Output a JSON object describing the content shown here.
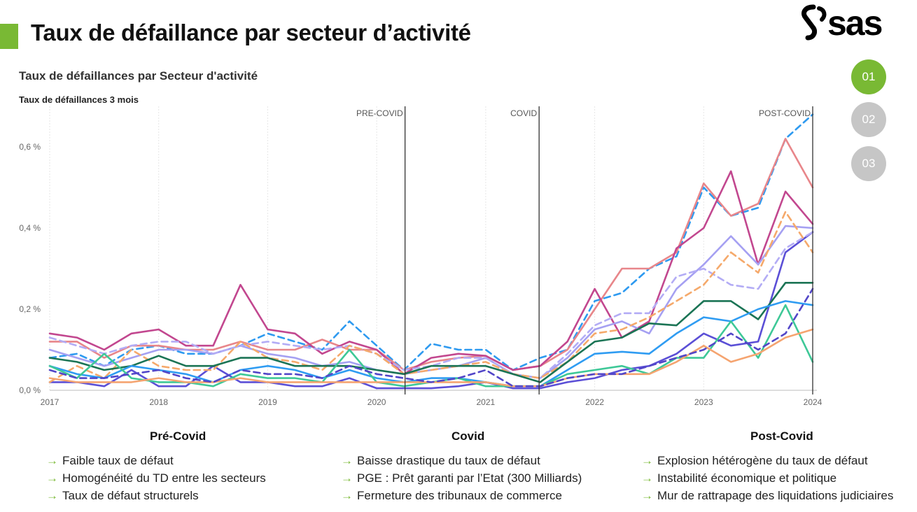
{
  "header": {
    "title": "Taux de défaillance par secteur d’activité",
    "logo_text": "sas"
  },
  "steps": [
    {
      "label": "01",
      "active": true
    },
    {
      "label": "02",
      "active": false
    },
    {
      "label": "03",
      "active": false
    }
  ],
  "chart_data": {
    "type": "line",
    "title": "Taux de défaillances par Secteur d'activité",
    "ylabel": "Taux de défaillances 3 mois",
    "xlim": [
      2017,
      2024
    ],
    "ylim": [
      0,
      0.7
    ],
    "yticks": [
      0,
      0.2,
      0.4,
      0.6
    ],
    "ytick_labels": [
      "0,0 %",
      "0,2 %",
      "0,4 %",
      "0,6 %"
    ],
    "xticks": [
      "2017",
      "2018",
      "2019",
      "2020",
      "2021",
      "2022",
      "2023",
      "2024"
    ],
    "grid": "vertical",
    "x": [
      2017,
      2017.25,
      2017.5,
      2017.75,
      2018,
      2018.25,
      2018.5,
      2018.75,
      2019,
      2019.25,
      2019.5,
      2019.75,
      2020,
      2020.25,
      2020.5,
      2020.75,
      2021,
      2021.25,
      2021.5,
      2021.75,
      2022,
      2022.25,
      2022.5,
      2022.75,
      2023,
      2023.25,
      2023.5,
      2023.75,
      2024
    ],
    "markers": [
      {
        "label": "PRE-COVID",
        "x": 2020.26
      },
      {
        "label": "COVID",
        "x": 2021.49
      },
      {
        "label": "POST-COVID",
        "x": 2024
      }
    ],
    "series": [
      {
        "color": "#2e9af0",
        "dash": true,
        "values": [
          0.08,
          0.09,
          0.06,
          0.1,
          0.11,
          0.09,
          0.09,
          0.11,
          0.14,
          0.12,
          0.1,
          0.17,
          0.11,
          0.05,
          0.115,
          0.1,
          0.1,
          0.05,
          0.08,
          0.1,
          0.22,
          0.24,
          0.3,
          0.33,
          0.5,
          0.43,
          0.45,
          0.62,
          0.68
        ]
      },
      {
        "color": "#e8868a",
        "dash": false,
        "values": [
          0.12,
          0.12,
          0.08,
          0.11,
          0.11,
          0.1,
          0.1,
          0.12,
          0.1,
          0.1,
          0.125,
          0.1,
          0.1,
          0.05,
          0.07,
          0.08,
          0.085,
          0.05,
          0.06,
          0.1,
          0.2,
          0.3,
          0.3,
          0.34,
          0.51,
          0.43,
          0.46,
          0.62,
          0.5
        ]
      },
      {
        "color": "#c2478f",
        "dash": false,
        "values": [
          0.14,
          0.13,
          0.1,
          0.14,
          0.15,
          0.11,
          0.11,
          0.26,
          0.15,
          0.14,
          0.09,
          0.12,
          0.1,
          0.04,
          0.08,
          0.09,
          0.085,
          0.05,
          0.06,
          0.12,
          0.25,
          0.13,
          0.17,
          0.35,
          0.4,
          0.54,
          0.31,
          0.49,
          0.41
        ]
      },
      {
        "color": "#5b4fd6",
        "dash": false,
        "values": [
          0.02,
          0.02,
          0.01,
          0.05,
          0.01,
          0.01,
          0.06,
          0.02,
          0.02,
          0.01,
          0.01,
          0.03,
          0.005,
          0.005,
          0.005,
          0.01,
          0.02,
          0.005,
          0.005,
          0.02,
          0.03,
          0.05,
          0.06,
          0.09,
          0.14,
          0.11,
          0.12,
          0.34,
          0.39
        ]
      },
      {
        "color": "#a5a0f2",
        "dash": false,
        "values": [
          0.1,
          0.08,
          0.06,
          0.08,
          0.1,
          0.1,
          0.09,
          0.11,
          0.09,
          0.08,
          0.06,
          0.07,
          0.05,
          0.04,
          0.05,
          0.06,
          0.08,
          0.04,
          0.03,
          0.08,
          0.15,
          0.17,
          0.14,
          0.25,
          0.31,
          0.38,
          0.31,
          0.405,
          0.4
        ]
      },
      {
        "color": "#b3acf5",
        "dash": true,
        "values": [
          0.13,
          0.11,
          0.09,
          0.11,
          0.12,
          0.12,
          0.09,
          0.11,
          0.12,
          0.11,
          0.1,
          0.11,
          0.09,
          0.05,
          0.06,
          0.08,
          0.08,
          0.04,
          0.03,
          0.09,
          0.16,
          0.19,
          0.19,
          0.28,
          0.3,
          0.26,
          0.25,
          0.35,
          0.39
        ]
      },
      {
        "color": "#f5a96b",
        "dash": true,
        "values": [
          0.02,
          0.06,
          0.03,
          0.1,
          0.06,
          0.05,
          0.05,
          0.12,
          0.08,
          0.07,
          0.05,
          0.11,
          0.09,
          0.04,
          0.05,
          0.06,
          0.07,
          0.04,
          0.03,
          0.07,
          0.14,
          0.15,
          0.18,
          0.22,
          0.26,
          0.34,
          0.29,
          0.44,
          0.34
        ]
      },
      {
        "color": "#1b7455",
        "dash": false,
        "values": [
          0.08,
          0.07,
          0.05,
          0.06,
          0.085,
          0.06,
          0.06,
          0.08,
          0.08,
          0.06,
          0.06,
          0.06,
          0.05,
          0.04,
          0.06,
          0.06,
          0.06,
          0.04,
          0.02,
          0.07,
          0.12,
          0.13,
          0.165,
          0.16,
          0.22,
          0.22,
          0.175,
          0.265,
          0.265
        ]
      },
      {
        "color": "#2f9cf2",
        "dash": false,
        "values": [
          0.06,
          0.04,
          0.03,
          0.06,
          0.05,
          0.04,
          0.02,
          0.05,
          0.06,
          0.05,
          0.03,
          0.05,
          0.03,
          0.02,
          0.03,
          0.03,
          0.02,
          0.01,
          0.01,
          0.05,
          0.09,
          0.095,
          0.09,
          0.14,
          0.18,
          0.17,
          0.2,
          0.22,
          0.21
        ]
      },
      {
        "color": "#3ec897",
        "dash": false,
        "values": [
          0.06,
          0.03,
          0.09,
          0.03,
          0.02,
          0.02,
          0.01,
          0.04,
          0.03,
          0.03,
          0.02,
          0.1,
          0.02,
          0.01,
          0.02,
          0.03,
          0.01,
          0.01,
          0.01,
          0.04,
          0.05,
          0.06,
          0.04,
          0.08,
          0.08,
          0.17,
          0.08,
          0.21,
          0.07
        ]
      },
      {
        "color": "#f5a470",
        "dash": false,
        "values": [
          0.03,
          0.02,
          0.02,
          0.02,
          0.03,
          0.02,
          0.02,
          0.03,
          0.02,
          0.02,
          0.02,
          0.02,
          0.02,
          0.02,
          0.02,
          0.02,
          0.02,
          0.01,
          0.01,
          0.03,
          0.04,
          0.04,
          0.04,
          0.07,
          0.11,
          0.07,
          0.09,
          0.13,
          0.15
        ]
      },
      {
        "color": "#5246c8",
        "dash": true,
        "values": [
          0.05,
          0.03,
          0.03,
          0.04,
          0.05,
          0.03,
          0.02,
          0.05,
          0.04,
          0.04,
          0.03,
          0.06,
          0.04,
          0.03,
          0.02,
          0.03,
          0.05,
          0.01,
          0.01,
          0.03,
          0.04,
          0.04,
          0.06,
          0.08,
          0.1,
          0.14,
          0.1,
          0.14,
          0.25
        ]
      }
    ]
  },
  "columns": [
    {
      "heading": "Pré-Covid",
      "items": [
        "Faible taux de défaut",
        "Homogénéité du TD entre les secteurs",
        "Taux de défaut structurels"
      ]
    },
    {
      "heading": "Covid",
      "items": [
        "Baisse drastique du taux de défaut",
        "PGE : Prêt garanti par l’Etat (300 Milliards)",
        "Fermeture des tribunaux de commerce"
      ]
    },
    {
      "heading": "Post-Covid",
      "items": [
        "Explosion hétérogène du taux de défaut",
        "Instabilité économique et politique",
        "Mur de rattrapage des liquidations judiciaires"
      ]
    }
  ]
}
